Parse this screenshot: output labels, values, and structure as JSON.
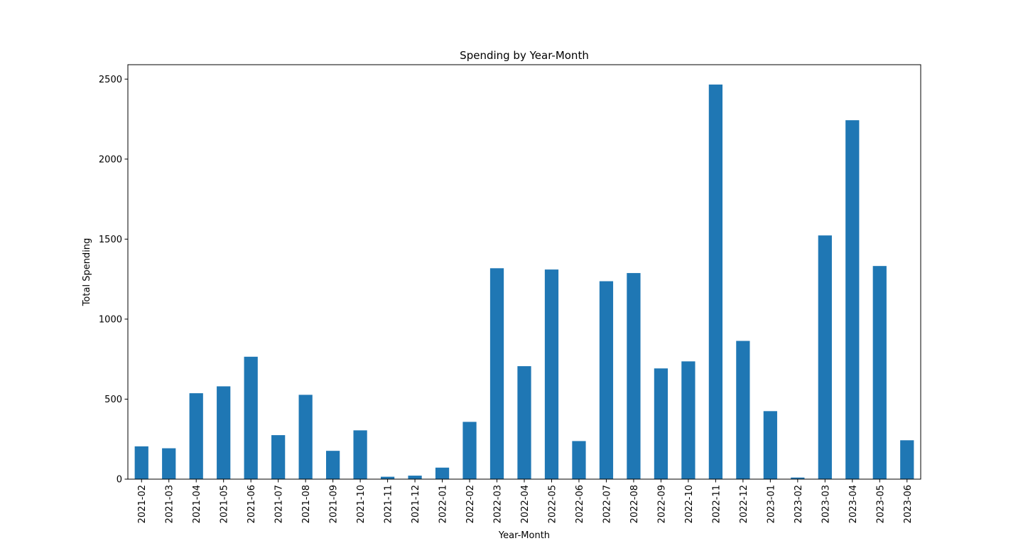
{
  "chart_data": {
    "type": "bar",
    "title": "Spending by Year-Month",
    "xlabel": "Year-Month",
    "ylabel": "Total Spending",
    "categories": [
      "2021-02",
      "2021-03",
      "2021-04",
      "2021-05",
      "2021-06",
      "2021-07",
      "2021-08",
      "2021-09",
      "2021-10",
      "2021-11",
      "2021-12",
      "2022-01",
      "2022-02",
      "2022-03",
      "2022-04",
      "2022-05",
      "2022-06",
      "2022-07",
      "2022-08",
      "2022-09",
      "2022-10",
      "2022-11",
      "2022-12",
      "2023-01",
      "2023-02",
      "2023-03",
      "2023-04",
      "2023-05",
      "2023-06"
    ],
    "values": [
      205,
      193,
      537,
      580,
      765,
      275,
      527,
      177,
      305,
      15,
      22,
      72,
      358,
      1318,
      706,
      1310,
      238,
      1237,
      1288,
      692,
      736,
      2466,
      864,
      425,
      10,
      1523,
      2243,
      1332,
      243
    ],
    "yticks": [
      0,
      500,
      1000,
      1500,
      2000,
      2500
    ],
    "ylim": [
      0,
      2590
    ],
    "bar_color": "#1f77b4",
    "grid": false,
    "legend": "none"
  }
}
